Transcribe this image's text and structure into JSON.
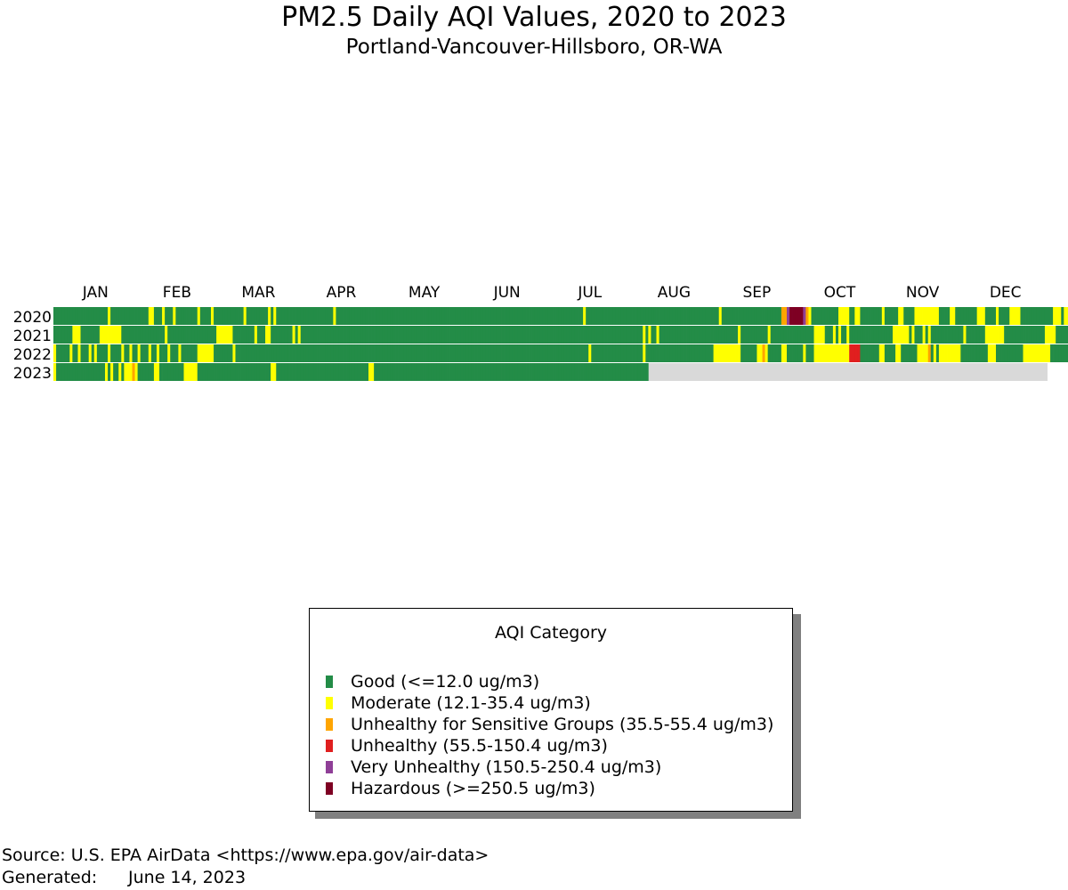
{
  "chart_data": {
    "type": "heatmap",
    "title": "PM2.5 Daily AQI Values, 2020 to 2023",
    "subtitle": "Portland-Vancouver-Hillsboro, OR-WA",
    "months": [
      "JAN",
      "FEB",
      "MAR",
      "APR",
      "MAY",
      "JUN",
      "JUL",
      "AUG",
      "SEP",
      "OCT",
      "NOV",
      "DEC"
    ],
    "years": [
      "2020",
      "2021",
      "2022",
      "2023"
    ],
    "categories": [
      {
        "key": "G",
        "name": "Good (<=12.0 ug/m3)",
        "color": "#238c47"
      },
      {
        "key": "M",
        "name": "Moderate (12.1-35.4 ug/m3)",
        "color": "#ffff00"
      },
      {
        "key": "S",
        "name": "Unhealthy for Sensitive Groups (35.5-55.4 ug/m3)",
        "color": "#ffa500"
      },
      {
        "key": "U",
        "name": "Unhealthy (55.5-150.4 ug/m3)",
        "color": "#e01f1f"
      },
      {
        "key": "V",
        "name": "Very Unhealthy (150.5-250.4 ug/m3)",
        "color": "#8f3f97"
      },
      {
        "key": "H",
        "name": "Hazardous (>=250.5 ug/m3)",
        "color": "#7e0023"
      }
    ],
    "no_data_color": "#d9d9d9",
    "days": [
      "GGGGGGGGGGGGGGGGGGGGMGGGGGGGGGGGGGGMMGGGMGGGMGGGGGGGGMGGGGMGGGGGGGGGGGMGGGGGGGGMGMGGGGGGGGGGGGGGGGGGGGGMGGGGGGGGGGGGGGGGGGGGGGGGGGGGGGGGGGGGGGGGGGGGGGGGGGGGGGGGGGGGGGGGGGGGGGGGGGGGGGGGGGGGGGGGGGGMGGGGGGGGGGGGGGGGGGGGGGGGGGGGGGGGGGGGGGGGGGGGGGGGGMGGGGGGGGGGGGGGGGGGGGGGSSVHHHHHVSMGGGGGGGGGGMMMMGGMMGGGGGGGGMGGGGGMMGGGGMMMMMMMMMGGGGMMGGGGGGGGMMMGGGGMGGGGMMMMGGGGGGGGGGGGMMMGMMGG",
      "GGGGGGGMMMGGGGGGGMMMMMMMMGGGGGGGGGGGGGGGGMGGGGGGGGGGGGGGGGGGMMMMMMGGGGGGGGMGGGMMGGGGGGGGMGMGGGGGGGGGGGGGGGGGGGGGGGGGGGGGGGGGGGGGGGGGGGGGGGGGGGGGGGGGGGGGGGGGGGGGGGGGGGGGGGGGGGGGGGGGGGGGGGGGGGGGGGGGGGGGGGGGGGGGGGGGGGGGGMGMGGMGGGGGGGGGGGGGGGGGGGGGGGGGGGGGMGGGGGGGGGGMGGGGGGGGGGGGGGGGMMMMGGGMGMGGMGGGGGGGGGGGGGGGGMMMMMMGMGGGMGMGGGGGGGGGGGGMGGGGGGGMMMMMMMGGGGGGGGGGGGGGGMMMMGGGGGGGMMMGMGGGGMGGMGGGGGGGGGMGGGGMGGGGMMMMMMMMMMGGGGGGGGGGG",
      "MGGGGGMGGMGGGMGMGGGGMGGGGMGGMGGMGGGMGGMGGGMGGGMGGGGGGMMMMMMGGGGGGGMGGGGGGGGGGGGGGGGGGGGGGGGGGGGGGGGGGGGGGGGGGGGGGGGGGGGGGGGGGGGGGGGGGGGGGGGGGGGGGGGGGGGGGGGGGGGGGGGGGGGGGGGGGGGGGGGGGGGGGGGGGGGGGGGGGMGGGGGGGGGGGGGGGGGGGMGGGGGGGGGGGGGGGGGGGGGGGGGMMMMMMMMMMGGGGGGMMSMGGGGGMMGGGGGGMGGGMMMMMMMMMMMMMUUUUGGGGGGGMMGGGGMMGGGGGGMMMMSGMGMMMMMMMMGGGGGGGGGGMMMGGGGGGGGGGMMMMMMMMMMGGGGGGGGGGGG",
      "MGGGGGGGGGGGGGGGGGGMGMGGMGMMMSMGGGGGGMMGGGGGGGGGMMMMMGGGGGGGGGGGGGGGGGGGGGGGGGGGMMGGGGGGGGGGGGGGGGGGGGGGGGGGGGGGGGGGMMGGGGGGGGGGGGGGGGGGGGGGGGGGGGGGGGGGGGGGGGGGGGGGGGGGGGGGGGGGGGGGGGGGGGGGGGGGGGGGGGGGGGGGGGGGGGGGGGGGGGG"
    ]
  },
  "legend": {
    "title": "AQI Category"
  },
  "footer": {
    "source": "Source: U.S. EPA AirData <https://www.epa.gov/air-data>",
    "generated_label": "Generated:",
    "generated_date": "June 14, 2023"
  }
}
